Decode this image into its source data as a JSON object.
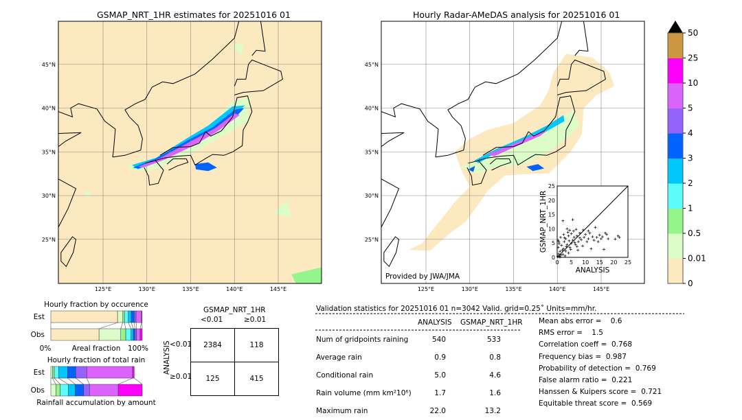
{
  "left_map": {
    "title": "GSMAP_NRT_1HR estimates for 20251016 01"
  },
  "right_map": {
    "title": "Hourly Radar-AMeDAS analysis for 20251016 01",
    "credit": "Provided by JWA/JMA"
  },
  "lon_labels": [
    "125°E",
    "130°E",
    "135°E",
    "140°E",
    "145°E"
  ],
  "lat_labels": [
    "45°N",
    "40°N",
    "35°N",
    "30°N",
    "25°N"
  ],
  "colorbar": {
    "ticks": [
      "0",
      "0.01",
      "0.5",
      "1",
      "2",
      "3",
      "4",
      "5",
      "10",
      "25",
      "50"
    ],
    "colors": [
      "#fde9c0",
      "#dcfcc8",
      "#93f58c",
      "#5cfcfc",
      "#00c8fc",
      "#0064fc",
      "#9664fc",
      "#dc64fc",
      "#fc00fc",
      "#cd9640"
    ],
    "extend_color": "#000000"
  },
  "chart_data": [
    {
      "type": "scatter",
      "xlabel": "ANALYSIS",
      "ylabel": "GSMAP_NRT_1HR",
      "xlim": [
        0,
        25
      ],
      "ylim": [
        0,
        25
      ],
      "xticks": [
        "0",
        "5",
        "10",
        "15",
        "20",
        "25"
      ],
      "yticks": [
        "0",
        "5",
        "10",
        "15",
        "20",
        "25"
      ],
      "diagonal": true,
      "points": [
        [
          0.2,
          0.3
        ],
        [
          0.5,
          1.2
        ],
        [
          0.8,
          0.4
        ],
        [
          1,
          2.1
        ],
        [
          1.3,
          0.8
        ],
        [
          0.4,
          3.5
        ],
        [
          0.6,
          5.5
        ],
        [
          1.5,
          4.2
        ],
        [
          2,
          1
        ],
        [
          2.2,
          3
        ],
        [
          2.5,
          5.5
        ],
        [
          3,
          2.2
        ],
        [
          3,
          6.5
        ],
        [
          3.5,
          4.5
        ],
        [
          4,
          1.5
        ],
        [
          4,
          7.5
        ],
        [
          4.5,
          3.5
        ],
        [
          5,
          5
        ],
        [
          5,
          8.3
        ],
        [
          5.5,
          6
        ],
        [
          5.5,
          13.2
        ],
        [
          2,
          12.8
        ],
        [
          3.5,
          10
        ],
        [
          6,
          7
        ],
        [
          6.5,
          4.5
        ],
        [
          7,
          7.5
        ],
        [
          7.5,
          5.5
        ],
        [
          8,
          8.5
        ],
        [
          8.5,
          6.2
        ],
        [
          9,
          4
        ],
        [
          9.5,
          7
        ],
        [
          10,
          8
        ],
        [
          10.5,
          5.5
        ],
        [
          11,
          6.5
        ],
        [
          11.5,
          8.5
        ],
        [
          12,
          3
        ],
        [
          12.5,
          7.2
        ],
        [
          13,
          6
        ],
        [
          13.5,
          10.5
        ],
        [
          14,
          7
        ],
        [
          14.5,
          5.5
        ],
        [
          15,
          7.8
        ],
        [
          15.5,
          6.5
        ],
        [
          16,
          7.2
        ],
        [
          16.5,
          2.8
        ],
        [
          17,
          8.5
        ],
        [
          17.5,
          8
        ],
        [
          18,
          6.5
        ],
        [
          20.5,
          6.4
        ],
        [
          21.5,
          7.5
        ],
        [
          22,
          7
        ],
        [
          1,
          0.1
        ],
        [
          1.8,
          2.5
        ],
        [
          2.8,
          0.5
        ],
        [
          3.2,
          3.8
        ],
        [
          4.2,
          5.8
        ],
        [
          4.8,
          2.8
        ],
        [
          6.2,
          5.2
        ],
        [
          7,
          3.8
        ],
        [
          8,
          6.8
        ],
        [
          0.3,
          6
        ],
        [
          0.7,
          4.8
        ],
        [
          1.2,
          7
        ],
        [
          2.3,
          8
        ],
        [
          3.8,
          8.8
        ],
        [
          5.8,
          9.2
        ],
        [
          2.6,
          6.8
        ],
        [
          4.4,
          9.5
        ],
        [
          9.2,
          9.6
        ],
        [
          11,
          9.3
        ],
        [
          7.3,
          2.5
        ],
        [
          6.7,
          9.8
        ]
      ]
    },
    {
      "type": "bar",
      "title": "Hourly fraction by occurence",
      "categories": [
        "Est",
        "Obs"
      ],
      "xlabel": "Areal fraction",
      "xtick_left": "0%",
      "xtick_right": "100%",
      "bins": [
        "0-0.01",
        "0.01-0.5",
        "0.5-1",
        "1-2",
        "2-3",
        "3-4",
        "4-5",
        "5-10",
        "10-25"
      ],
      "series": [
        {
          "name": "Est",
          "values": [
            73,
            5.75,
            1.75,
            4.25,
            3.25,
            3.25,
            2,
            6,
            0.5
          ]
        },
        {
          "name": "Obs",
          "values": [
            52.75,
            23.75,
            5.5,
            5.75,
            2.5,
            1.75,
            1.75,
            4,
            2.25
          ]
        }
      ]
    },
    {
      "type": "bar",
      "title": "Hourly fraction of total rain",
      "categories": [
        "Est",
        "Obs"
      ],
      "xlabel": "Rainfall accumulation by amount",
      "bins": [
        "0.01-0.5",
        "0.5-1",
        "1-2",
        "2-3",
        "3-4",
        "4-5",
        "5-10",
        "10-25"
      ],
      "series": [
        {
          "name": "Est",
          "values": [
            1.75,
            2,
            4.75,
            9.75,
            9,
            12,
            50.25,
            1.75
          ]
        },
        {
          "name": "Obs",
          "values": [
            5.5,
            4.75,
            8.75,
            7.75,
            9,
            6.5,
            31.5,
            26.25
          ]
        }
      ]
    }
  ],
  "contingency": {
    "title": "GSMAP_NRT_1HR",
    "col_headers": [
      "<0.01",
      "≥0.01"
    ],
    "row_label": "ANALYSIS",
    "row_headers": [
      "<0.01",
      "≥0.01"
    ],
    "cells": [
      [
        "2384",
        "118"
      ],
      [
        "125",
        "415"
      ]
    ]
  },
  "validation": {
    "header": "Validation statistics for 20251016 01  n=3042 Valid. grid=0.25˚ Units=mm/hr.",
    "col_headers": [
      "ANALYSIS",
      "GSMAP_NRT_1HR"
    ],
    "rows": [
      {
        "label": "Num of gridpoints raining",
        "analysis": "540",
        "gsmap": "533"
      },
      {
        "label": "Average rain",
        "analysis": "0.9",
        "gsmap": "0.8"
      },
      {
        "label": "Conditional rain",
        "analysis": "5.0",
        "gsmap": "4.6"
      },
      {
        "label": "Rain volume (mm km²10⁶)",
        "analysis": "1.7",
        "gsmap": "1.6"
      },
      {
        "label": "Maximum rain",
        "analysis": "22.0",
        "gsmap": "13.2"
      }
    ],
    "scores": [
      "Mean abs error =    0.6",
      "RMS error =    1.5",
      "Correlation coeff =  0.768",
      "Frequency bias =  0.987",
      "Probability of detection =  0.769",
      "False alarm ratio =  0.221",
      "Hanssen & Kuipers score =  0.721",
      "Equitable threat score =  0.569"
    ]
  }
}
